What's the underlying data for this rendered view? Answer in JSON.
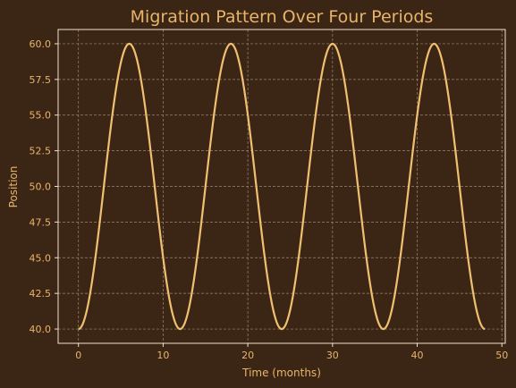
{
  "chart_data": {
    "type": "line",
    "title": "Migration Pattern Over Four Periods",
    "xlabel": "Time (months)",
    "ylabel": "Position",
    "xlim": [
      -2.4,
      50.4
    ],
    "ylim": [
      39.0,
      61.0
    ],
    "xticks": [
      0,
      10,
      20,
      30,
      40,
      50
    ],
    "yticks": [
      40.0,
      42.5,
      45.0,
      47.5,
      50.0,
      52.5,
      55.0,
      57.5,
      60.0
    ],
    "ytick_labels": [
      "40.0",
      "42.5",
      "45.0",
      "47.5",
      "50.0",
      "52.5",
      "55.0",
      "57.5",
      "60.0"
    ],
    "grid": true,
    "legend": "none",
    "series": [
      {
        "function": "50 - 10*cos(2*pi*t/12)",
        "x_range": [
          0,
          48
        ],
        "period": 12,
        "min": 40.0,
        "max": 60.0,
        "color": "#f0c070"
      }
    ]
  },
  "colors": {
    "background": "#3b2616",
    "axes_frame": "#f3e3c6",
    "text": "#e8b46a",
    "grid": "#9a8670",
    "line": "#f0c070"
  }
}
